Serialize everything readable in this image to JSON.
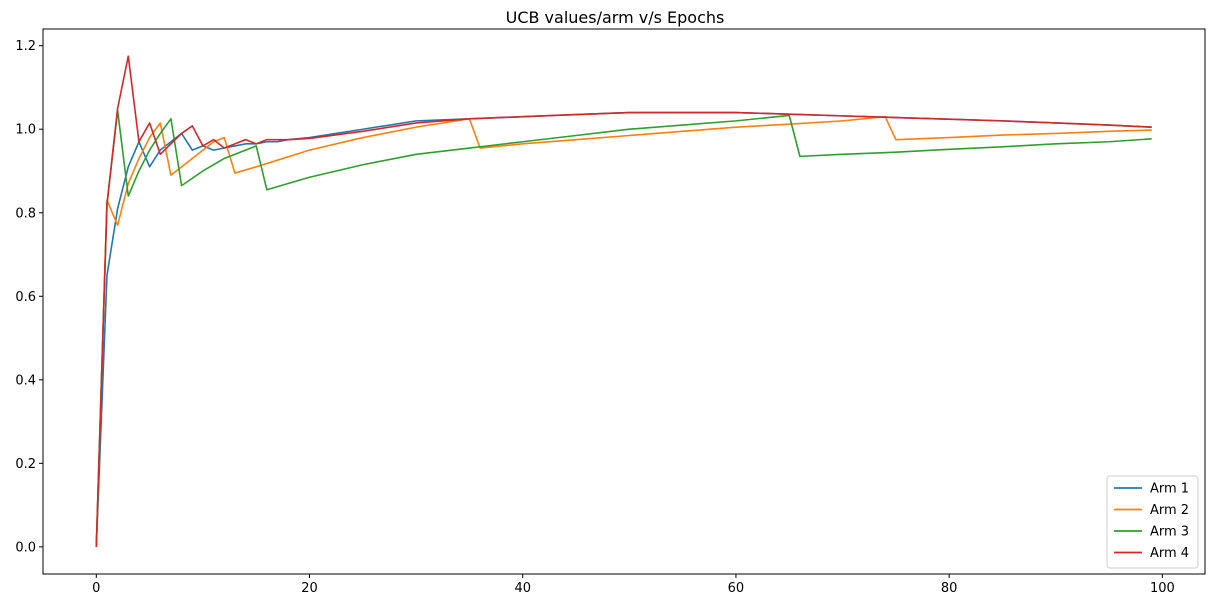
{
  "chart_data": {
    "type": "line",
    "title": "UCB values/arm v/s Epochs",
    "xlabel": "",
    "ylabel": "",
    "xlim": [
      -5,
      104
    ],
    "ylim": [
      -0.065,
      1.24
    ],
    "xticks": [
      0,
      20,
      40,
      60,
      80,
      100
    ],
    "xtick_labels": [
      "0",
      "20",
      "40",
      "60",
      "80",
      "100"
    ],
    "yticks": [
      0.0,
      0.2,
      0.4,
      0.6,
      0.8,
      1.0,
      1.2
    ],
    "ytick_labels": [
      "0.0",
      "0.2",
      "0.4",
      "0.6",
      "0.8",
      "1.0",
      "1.2"
    ],
    "grid": false,
    "legend_position": "bottom-right",
    "series": [
      {
        "name": "Arm 1",
        "color": "#1f77b4",
        "points": [
          [
            0,
            0
          ],
          [
            1,
            0.65
          ],
          [
            2,
            0.81
          ],
          [
            3,
            0.91
          ],
          [
            4,
            0.97
          ],
          [
            5,
            0.91
          ],
          [
            6,
            0.95
          ],
          [
            7,
            0.97
          ],
          [
            8,
            0.99
          ],
          [
            9,
            0.95
          ],
          [
            10,
            0.96
          ],
          [
            11,
            0.95
          ],
          [
            12,
            0.955
          ],
          [
            13,
            0.96
          ],
          [
            14,
            0.965
          ],
          [
            15,
            0.965
          ],
          [
            16,
            0.97
          ],
          [
            17,
            0.97
          ],
          [
            18,
            0.975
          ],
          [
            20,
            0.98
          ],
          [
            25,
            1.0
          ],
          [
            30,
            1.02
          ],
          [
            35,
            1.025
          ],
          [
            40,
            1.03
          ],
          [
            45,
            1.035
          ],
          [
            50,
            1.04
          ],
          [
            55,
            1.04
          ],
          [
            60,
            1.04
          ],
          [
            65,
            1.036
          ],
          [
            70,
            1.032
          ],
          [
            75,
            1.028
          ],
          [
            80,
            1.024
          ],
          [
            85,
            1.02
          ],
          [
            90,
            1.015
          ],
          [
            95,
            1.01
          ],
          [
            99,
            1.005
          ]
        ]
      },
      {
        "name": "Arm 2",
        "color": "#ff7f0e",
        "points": [
          [
            0,
            0
          ],
          [
            1,
            0.83
          ],
          [
            2,
            0.77
          ],
          [
            3,
            0.87
          ],
          [
            4,
            0.93
          ],
          [
            5,
            0.98
          ],
          [
            6,
            1.015
          ],
          [
            7,
            0.89
          ],
          [
            8,
            0.91
          ],
          [
            9,
            0.93
          ],
          [
            10,
            0.95
          ],
          [
            11,
            0.97
          ],
          [
            12,
            0.98
          ],
          [
            13,
            0.895
          ],
          [
            15,
            0.91
          ],
          [
            20,
            0.95
          ],
          [
            25,
            0.98
          ],
          [
            30,
            1.005
          ],
          [
            35,
            1.025
          ],
          [
            36,
            0.955
          ],
          [
            40,
            0.965
          ],
          [
            45,
            0.975
          ],
          [
            50,
            0.985
          ],
          [
            55,
            0.995
          ],
          [
            60,
            1.005
          ],
          [
            65,
            1.012
          ],
          [
            70,
            1.02
          ],
          [
            74,
            1.03
          ],
          [
            75,
            0.975
          ],
          [
            80,
            0.98
          ],
          [
            85,
            0.986
          ],
          [
            90,
            0.99
          ],
          [
            95,
            0.995
          ],
          [
            99,
            0.998
          ]
        ]
      },
      {
        "name": "Arm 3",
        "color": "#2ca02c",
        "points": [
          [
            0,
            0
          ],
          [
            1,
            0.82
          ],
          [
            2,
            1.045
          ],
          [
            3,
            0.84
          ],
          [
            4,
            0.9
          ],
          [
            5,
            0.95
          ],
          [
            6,
            0.99
          ],
          [
            7,
            1.025
          ],
          [
            8,
            0.865
          ],
          [
            10,
            0.9
          ],
          [
            12,
            0.93
          ],
          [
            14,
            0.95
          ],
          [
            15,
            0.96
          ],
          [
            16,
            0.855
          ],
          [
            20,
            0.885
          ],
          [
            25,
            0.915
          ],
          [
            30,
            0.94
          ],
          [
            35,
            0.955
          ],
          [
            40,
            0.97
          ],
          [
            45,
            0.985
          ],
          [
            50,
            1.0
          ],
          [
            55,
            1.01
          ],
          [
            60,
            1.02
          ],
          [
            65,
            1.033
          ],
          [
            66,
            0.935
          ],
          [
            70,
            0.94
          ],
          [
            75,
            0.945
          ],
          [
            80,
            0.952
          ],
          [
            85,
            0.958
          ],
          [
            90,
            0.965
          ],
          [
            95,
            0.97
          ],
          [
            99,
            0.977
          ]
        ]
      },
      {
        "name": "Arm 4",
        "color": "#d62728",
        "points": [
          [
            0,
            0
          ],
          [
            1,
            0.82
          ],
          [
            2,
            1.05
          ],
          [
            3,
            1.175
          ],
          [
            4,
            0.97
          ],
          [
            5,
            1.015
          ],
          [
            6,
            0.94
          ],
          [
            7,
            0.965
          ],
          [
            8,
            0.99
          ],
          [
            9,
            1.008
          ],
          [
            10,
            0.96
          ],
          [
            11,
            0.975
          ],
          [
            12,
            0.955
          ],
          [
            13,
            0.965
          ],
          [
            14,
            0.975
          ],
          [
            15,
            0.965
          ],
          [
            16,
            0.975
          ],
          [
            17,
            0.975
          ],
          [
            18,
            0.975
          ],
          [
            20,
            0.978
          ],
          [
            25,
            0.995
          ],
          [
            30,
            1.015
          ],
          [
            35,
            1.025
          ],
          [
            40,
            1.03
          ],
          [
            45,
            1.035
          ],
          [
            50,
            1.04
          ],
          [
            55,
            1.04
          ],
          [
            60,
            1.04
          ],
          [
            65,
            1.036
          ],
          [
            70,
            1.032
          ],
          [
            75,
            1.028
          ],
          [
            80,
            1.024
          ],
          [
            85,
            1.02
          ],
          [
            90,
            1.015
          ],
          [
            95,
            1.01
          ],
          [
            99,
            1.005
          ]
        ]
      }
    ]
  }
}
